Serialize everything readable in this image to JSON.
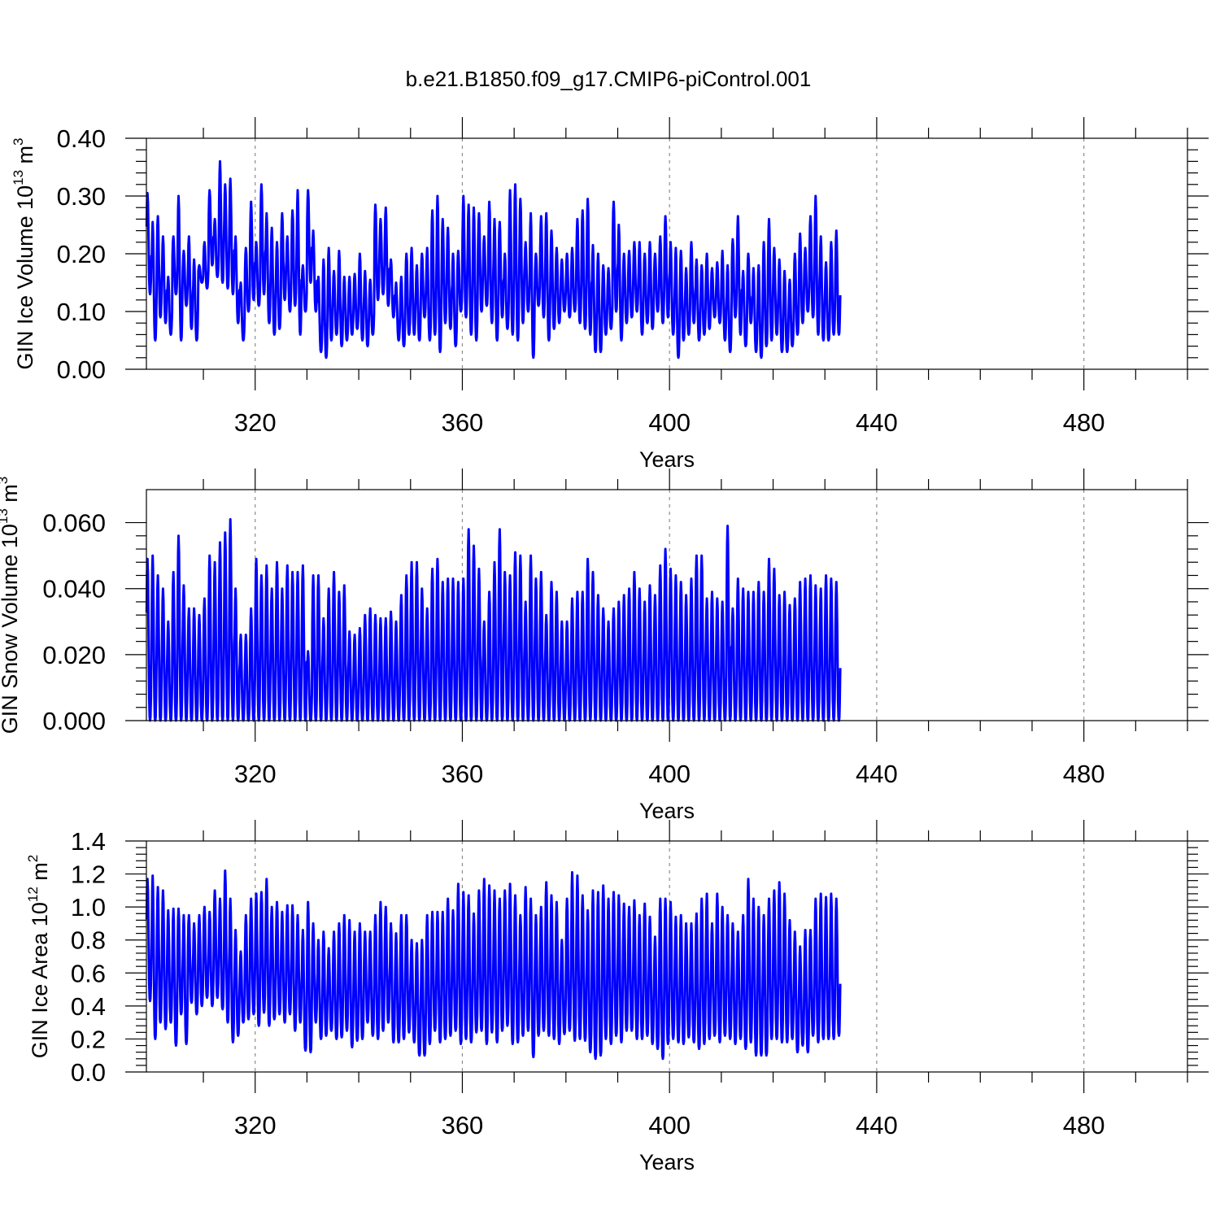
{
  "figure_title": "b.e21.B1850.f09_g17.CMIP6-piControl.001",
  "colors": {
    "series": "#0000ff",
    "grid": "#8c8c8c",
    "axis": "#000000"
  },
  "chart_data": [
    {
      "type": "line",
      "title": "",
      "xlabel": "Years",
      "ylabel": {
        "text": "GIN Ice Volume 10",
        "exponent": "13",
        "unit": " m",
        "unit_exponent": "3"
      },
      "xlim": [
        299,
        500
      ],
      "ylim": [
        0,
        0.4
      ],
      "xticks": [
        320,
        360,
        400,
        440,
        480
      ],
      "xtick_labels": [
        "320",
        "360",
        "400",
        "440",
        "480"
      ],
      "yticks": [
        0,
        0.1,
        0.2,
        0.3,
        0.4
      ],
      "ytick_labels": [
        "0.00",
        "0.10",
        "0.20",
        "0.30",
        "0.40"
      ],
      "grid": "vertical dashed at major x ticks",
      "series": [
        {
          "sampling": "monthly",
          "x_start": 299,
          "annual_max": [
            0.305,
            0.255,
            0.265,
            0.23,
            0.16,
            0.23,
            0.3,
            0.205,
            0.23,
            0.19,
            0.18,
            0.22,
            0.31,
            0.26,
            0.36,
            0.32,
            0.33,
            0.23,
            0.15,
            0.21,
            0.29,
            0.22,
            0.32,
            0.27,
            0.245,
            0.22,
            0.27,
            0.23,
            0.275,
            0.31,
            0.18,
            0.31,
            0.24,
            0.16,
            0.19,
            0.21,
            0.17,
            0.205,
            0.16,
            0.16,
            0.165,
            0.2,
            0.17,
            0.155,
            0.285,
            0.26,
            0.28,
            0.19,
            0.15,
            0.16,
            0.2,
            0.21,
            0.18,
            0.2,
            0.21,
            0.275,
            0.3,
            0.26,
            0.245,
            0.2,
            0.205,
            0.3,
            0.285,
            0.28,
            0.27,
            0.23,
            0.29,
            0.26,
            0.255,
            0.2,
            0.31,
            0.32,
            0.295,
            0.22,
            0.27,
            0.2,
            0.265,
            0.27,
            0.24,
            0.21,
            0.19,
            0.2,
            0.21,
            0.26,
            0.275,
            0.295,
            0.215,
            0.2,
            0.18,
            0.175,
            0.29,
            0.25,
            0.2,
            0.205,
            0.22,
            0.22,
            0.2,
            0.22,
            0.2,
            0.23,
            0.265,
            0.22,
            0.21,
            0.205,
            0.175,
            0.22,
            0.19,
            0.18,
            0.2,
            0.175,
            0.185,
            0.205,
            0.18,
            0.225,
            0.265,
            0.17,
            0.2,
            0.175,
            0.18,
            0.22,
            0.26,
            0.21,
            0.19,
            0.17,
            0.155,
            0.2,
            0.235,
            0.21,
            0.265,
            0.3,
            0.23,
            0.185,
            0.22,
            0.24
          ],
          "annual_min": [
            0.13,
            0.05,
            0.09,
            0.08,
            0.06,
            0.13,
            0.05,
            0.11,
            0.07,
            0.05,
            0.15,
            0.14,
            0.18,
            0.16,
            0.15,
            0.14,
            0.13,
            0.08,
            0.05,
            0.1,
            0.12,
            0.11,
            0.13,
            0.08,
            0.06,
            0.07,
            0.12,
            0.1,
            0.11,
            0.06,
            0.1,
            0.15,
            0.1,
            0.03,
            0.02,
            0.05,
            0.06,
            0.04,
            0.05,
            0.06,
            0.07,
            0.05,
            0.04,
            0.06,
            0.12,
            0.13,
            0.11,
            0.09,
            0.05,
            0.04,
            0.06,
            0.06,
            0.05,
            0.09,
            0.05,
            0.06,
            0.03,
            0.08,
            0.07,
            0.04,
            0.1,
            0.09,
            0.06,
            0.05,
            0.1,
            0.11,
            0.08,
            0.05,
            0.09,
            0.07,
            0.06,
            0.05,
            0.08,
            0.1,
            0.02,
            0.11,
            0.09,
            0.05,
            0.07,
            0.08,
            0.1,
            0.09,
            0.1,
            0.08,
            0.07,
            0.06,
            0.03,
            0.03,
            0.06,
            0.07,
            0.1,
            0.05,
            0.08,
            0.09,
            0.1,
            0.06,
            0.08,
            0.07,
            0.1,
            0.08,
            0.09,
            0.06,
            0.02,
            0.05,
            0.06,
            0.08,
            0.05,
            0.06,
            0.07,
            0.09,
            0.08,
            0.05,
            0.03,
            0.09,
            0.06,
            0.04,
            0.08,
            0.03,
            0.02,
            0.04,
            0.05,
            0.06,
            0.03,
            0.03,
            0.04,
            0.06,
            0.08,
            0.1,
            0.09,
            0.06,
            0.05,
            0.05,
            0.06,
            0.06
          ]
        }
      ]
    },
    {
      "type": "line",
      "title": "",
      "xlabel": "Years",
      "ylabel": {
        "text": "GIN Snow Volume 10",
        "exponent": "13",
        "unit": " m",
        "unit_exponent": "3"
      },
      "xlim": [
        299,
        500
      ],
      "ylim": [
        0,
        0.07
      ],
      "xticks": [
        320,
        360,
        400,
        440,
        480
      ],
      "xtick_labels": [
        "320",
        "360",
        "400",
        "440",
        "480"
      ],
      "yticks": [
        0,
        0.02,
        0.04,
        0.06
      ],
      "ytick_labels": [
        "0.000",
        "0.020",
        "0.040",
        "0.060"
      ],
      "grid": "vertical dashed at major x ticks",
      "series": [
        {
          "sampling": "monthly",
          "x_start": 299,
          "annual_max": [
            0.049,
            0.05,
            0.044,
            0.04,
            0.03,
            0.045,
            0.056,
            0.041,
            0.034,
            0.034,
            0.032,
            0.037,
            0.05,
            0.048,
            0.054,
            0.057,
            0.061,
            0.04,
            0.026,
            0.026,
            0.034,
            0.049,
            0.044,
            0.047,
            0.04,
            0.048,
            0.04,
            0.047,
            0.045,
            0.045,
            0.047,
            0.021,
            0.044,
            0.044,
            0.031,
            0.04,
            0.045,
            0.039,
            0.041,
            0.027,
            0.026,
            0.028,
            0.032,
            0.034,
            0.032,
            0.031,
            0.031,
            0.033,
            0.03,
            0.038,
            0.044,
            0.048,
            0.048,
            0.04,
            0.034,
            0.046,
            0.049,
            0.042,
            0.043,
            0.043,
            0.042,
            0.043,
            0.058,
            0.053,
            0.046,
            0.03,
            0.039,
            0.048,
            0.058,
            0.045,
            0.044,
            0.051,
            0.05,
            0.036,
            0.05,
            0.043,
            0.045,
            0.032,
            0.042,
            0.039,
            0.03,
            0.03,
            0.037,
            0.039,
            0.039,
            0.049,
            0.045,
            0.038,
            0.034,
            0.03,
            0.034,
            0.036,
            0.038,
            0.04,
            0.045,
            0.04,
            0.036,
            0.041,
            0.038,
            0.047,
            0.052,
            0.046,
            0.044,
            0.042,
            0.038,
            0.043,
            0.05,
            0.05,
            0.037,
            0.039,
            0.037,
            0.036,
            0.059,
            0.034,
            0.043,
            0.04,
            0.039,
            0.039,
            0.042,
            0.039,
            0.049,
            0.046,
            0.038,
            0.039,
            0.035,
            0.037,
            0.042,
            0.043,
            0.044,
            0.041,
            0.04,
            0.044,
            0.043,
            0.042
          ],
          "annual_min": [
            0.0,
            0.0,
            0.0,
            0.0,
            0.0,
            0.0,
            0.0,
            0.0,
            0.0,
            0.0,
            0.0,
            0.0,
            0.0,
            0.0,
            0.0,
            0.0,
            0.0,
            0.0,
            0.0,
            0.0,
            0.0,
            0.0,
            0.0,
            0.0,
            0.0,
            0.0,
            0.0,
            0.0,
            0.0,
            0.0,
            0.0,
            0.0,
            0.0,
            0.0,
            0.0,
            0.0,
            0.0,
            0.0,
            0.0,
            0.0,
            0.0,
            0.0,
            0.0,
            0.0,
            0.0,
            0.0,
            0.0,
            0.0,
            0.0,
            0.0,
            0.0,
            0.0,
            0.0,
            0.0,
            0.0,
            0.0,
            0.0,
            0.0,
            0.0,
            0.0,
            0.0,
            0.0,
            0.0,
            0.0,
            0.0,
            0.0,
            0.0,
            0.0,
            0.0,
            0.0,
            0.0,
            0.0,
            0.0,
            0.0,
            0.0,
            0.0,
            0.0,
            0.0,
            0.0,
            0.0,
            0.0,
            0.0,
            0.0,
            0.0,
            0.0,
            0.0,
            0.0,
            0.0,
            0.0,
            0.0,
            0.0,
            0.0,
            0.0,
            0.0,
            0.0,
            0.0,
            0.0,
            0.0,
            0.0,
            0.0,
            0.0,
            0.0,
            0.0,
            0.0,
            0.0,
            0.0,
            0.0,
            0.0,
            0.0,
            0.0,
            0.0,
            0.0,
            0.0,
            0.0,
            0.0,
            0.0,
            0.0,
            0.0,
            0.0,
            0.0,
            0.0,
            0.0,
            0.0,
            0.0,
            0.0,
            0.0,
            0.0,
            0.0,
            0.0,
            0.0,
            0.0,
            0.0,
            0.0,
            0.0
          ]
        }
      ]
    },
    {
      "type": "line",
      "title": "",
      "xlabel": "Years",
      "ylabel": {
        "text": "GIN Ice Area 10",
        "exponent": "12",
        "unit": " m",
        "unit_exponent": "2"
      },
      "xlim": [
        299,
        500
      ],
      "ylim": [
        0,
        1.4
      ],
      "xticks": [
        320,
        360,
        400,
        440,
        480
      ],
      "xtick_labels": [
        "320",
        "360",
        "400",
        "440",
        "480"
      ],
      "yticks": [
        0,
        0.2,
        0.4,
        0.6,
        0.8,
        1.0,
        1.2,
        1.4
      ],
      "ytick_labels": [
        "0.0",
        "0.2",
        "0.4",
        "0.6",
        "0.8",
        "1.0",
        "1.2",
        "1.4"
      ],
      "grid": "vertical dashed at major x ticks",
      "series": [
        {
          "sampling": "monthly",
          "x_start": 299,
          "annual_max": [
            1.17,
            1.19,
            1.12,
            1.1,
            0.98,
            0.99,
            0.99,
            0.95,
            0.95,
            0.9,
            0.95,
            1.0,
            0.97,
            1.1,
            1.05,
            1.22,
            1.05,
            0.86,
            0.73,
            0.95,
            1.05,
            1.08,
            1.09,
            1.17,
            1.0,
            1.03,
            0.97,
            1.01,
            1.01,
            0.95,
            0.86,
            1.03,
            0.9,
            0.8,
            0.85,
            0.75,
            0.85,
            0.9,
            0.95,
            0.92,
            0.85,
            0.9,
            0.85,
            0.85,
            0.95,
            1.03,
            1.0,
            0.9,
            0.84,
            0.95,
            0.95,
            0.8,
            0.78,
            0.8,
            0.95,
            0.97,
            0.97,
            0.97,
            1.05,
            0.98,
            1.14,
            1.09,
            1.07,
            0.96,
            1.1,
            1.17,
            1.13,
            1.1,
            1.05,
            1.1,
            1.14,
            1.07,
            0.95,
            1.12,
            1.05,
            0.95,
            1.0,
            1.15,
            1.07,
            1.03,
            0.8,
            1.05,
            1.21,
            1.19,
            1.07,
            0.98,
            1.1,
            1.09,
            1.13,
            1.05,
            1.09,
            1.07,
            1.02,
            1.0,
            1.04,
            0.95,
            1.02,
            0.94,
            0.82,
            1.05,
            1.05,
            1.03,
            0.94,
            0.95,
            0.9,
            0.9,
            0.96,
            1.05,
            1.08,
            0.9,
            1.08,
            1.0,
            0.95,
            0.9,
            0.85,
            0.95,
            1.17,
            1.05,
            1.0,
            0.95,
            1.05,
            1.1,
            1.15,
            1.08,
            0.92,
            0.85,
            0.76,
            0.86,
            0.86,
            1.05,
            1.08,
            1.06,
            1.08,
            1.05
          ],
          "annual_min": [
            0.43,
            0.2,
            0.3,
            0.26,
            0.3,
            0.16,
            0.35,
            0.17,
            0.42,
            0.35,
            0.4,
            0.45,
            0.4,
            0.45,
            0.38,
            0.3,
            0.18,
            0.22,
            0.3,
            0.32,
            0.35,
            0.28,
            0.36,
            0.28,
            0.32,
            0.35,
            0.3,
            0.35,
            0.25,
            0.3,
            0.13,
            0.12,
            0.3,
            0.2,
            0.22,
            0.25,
            0.2,
            0.21,
            0.25,
            0.15,
            0.19,
            0.2,
            0.3,
            0.22,
            0.2,
            0.25,
            0.3,
            0.18,
            0.18,
            0.2,
            0.24,
            0.18,
            0.1,
            0.1,
            0.17,
            0.25,
            0.18,
            0.2,
            0.22,
            0.25,
            0.17,
            0.2,
            0.18,
            0.24,
            0.25,
            0.17,
            0.24,
            0.18,
            0.25,
            0.28,
            0.17,
            0.18,
            0.22,
            0.25,
            0.09,
            0.22,
            0.25,
            0.22,
            0.2,
            0.17,
            0.23,
            0.25,
            0.19,
            0.2,
            0.19,
            0.12,
            0.08,
            0.1,
            0.2,
            0.17,
            0.22,
            0.18,
            0.25,
            0.25,
            0.2,
            0.2,
            0.22,
            0.17,
            0.14,
            0.08,
            0.17,
            0.2,
            0.18,
            0.17,
            0.21,
            0.18,
            0.14,
            0.17,
            0.2,
            0.22,
            0.18,
            0.22,
            0.2,
            0.17,
            0.2,
            0.14,
            0.18,
            0.1,
            0.1,
            0.1,
            0.2,
            0.2,
            0.18,
            0.18,
            0.2,
            0.12,
            0.16,
            0.12,
            0.22,
            0.18,
            0.2,
            0.2,
            0.2,
            0.22
          ]
        }
      ]
    }
  ]
}
